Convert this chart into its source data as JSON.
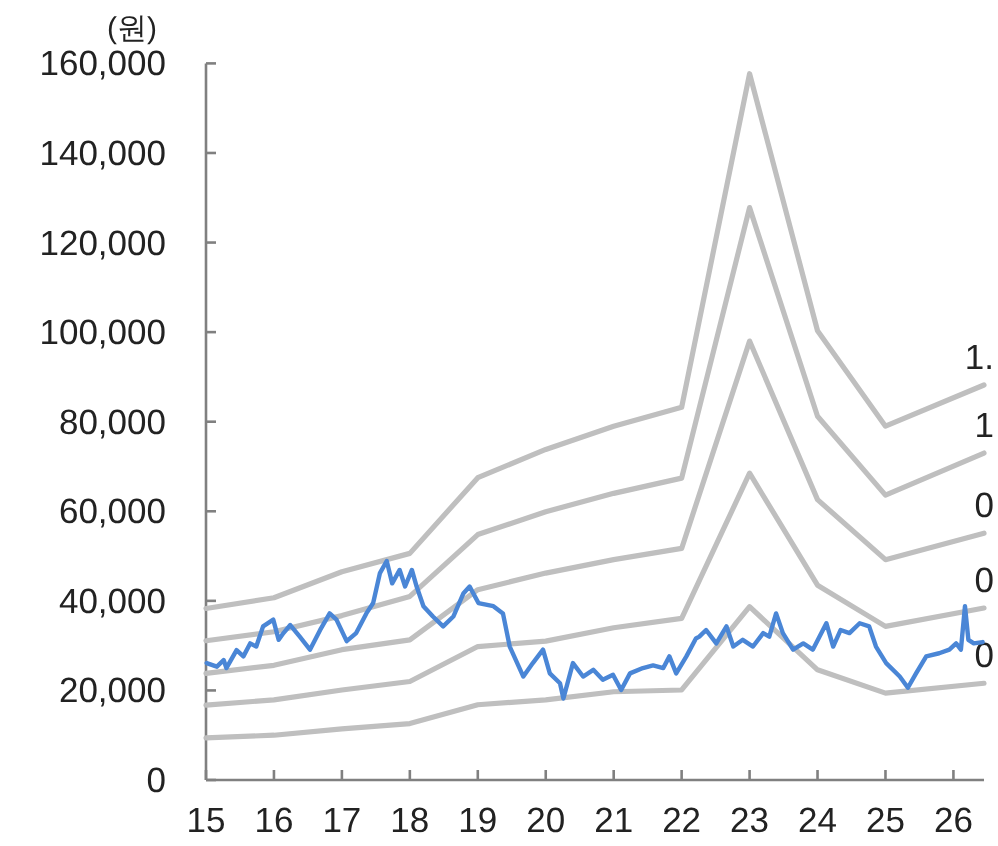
{
  "chart_data": {
    "type": "line",
    "ylabel": "(원)",
    "xlim": [
      15,
      26.45
    ],
    "ylim": [
      0,
      160000
    ],
    "xticks": [
      15,
      16,
      17,
      18,
      19,
      20,
      21,
      22,
      23,
      24,
      25,
      26
    ],
    "yticks": [
      0,
      {
        "value": 20000,
        "label": "20,000"
      },
      {
        "value": 40000,
        "label": "40,000"
      },
      {
        "value": 60000,
        "label": "60,000"
      },
      {
        "value": 80000,
        "label": "80,000"
      },
      {
        "value": 100000,
        "label": "100,000"
      },
      {
        "value": 120000,
        "label": "120,000"
      },
      {
        "value": 140000,
        "label": "140,000"
      },
      {
        "value": 160000,
        "label": "160,000"
      }
    ],
    "grid": false,
    "legend": false,
    "marker": "none",
    "line_style": "solid",
    "series": [
      {
        "color": "#bfbfbf",
        "name": "1.",
        "x": [
          15,
          16,
          17,
          18,
          19,
          20,
          21,
          22,
          23,
          24,
          25,
          26.45
        ],
        "values": [
          38300,
          40700,
          46500,
          50600,
          67500,
          73800,
          79000,
          83200,
          157700,
          100300,
          79000,
          88200
        ]
      },
      {
        "color": "#bfbfbf",
        "name": "1",
        "x": [
          15,
          16,
          17,
          18,
          19,
          20,
          21,
          22,
          23,
          24,
          25,
          26.45
        ],
        "values": [
          31100,
          33100,
          36700,
          41000,
          54800,
          59900,
          64000,
          67400,
          127800,
          81200,
          63600,
          73000
        ]
      },
      {
        "color": "#bfbfbf",
        "name": "0",
        "x": [
          15,
          16,
          17,
          18,
          19,
          20,
          21,
          22,
          23,
          24,
          25,
          26.45
        ],
        "values": [
          23800,
          25600,
          29100,
          31300,
          42500,
          46200,
          49200,
          51700,
          98000,
          62600,
          49200,
          55100
        ]
      },
      {
        "color": "#bfbfbf",
        "name": "0",
        "x": [
          15,
          16,
          17,
          18,
          19,
          20,
          21,
          22,
          23,
          24,
          25,
          26.45
        ],
        "values": [
          16700,
          17900,
          20100,
          22000,
          29800,
          31000,
          34000,
          36100,
          68500,
          43500,
          34300,
          38400
        ]
      },
      {
        "color": "#bfbfbf",
        "name": "0",
        "x": [
          15,
          16,
          17,
          18,
          19,
          20,
          21,
          22,
          23,
          24,
          25,
          26.45
        ],
        "values": [
          9400,
          10000,
          11400,
          12600,
          16800,
          17900,
          19700,
          20100,
          38700,
          24600,
          19400,
          21600
        ]
      },
      {
        "color": "#4a86d6",
        "x": [
          15.01,
          15.16,
          15.26,
          15.3,
          15.45,
          15.55,
          15.65,
          15.74,
          15.84,
          15.99,
          16.07,
          16.14,
          16.24,
          16.38,
          16.53,
          16.68,
          16.82,
          16.92,
          17.07,
          17.21,
          17.36,
          17.46,
          17.56,
          17.66,
          17.74,
          17.85,
          17.93,
          18.03,
          18.1,
          18.2,
          18.34,
          18.49,
          18.64,
          18.79,
          18.88,
          19.01,
          19.23,
          19.37,
          19.47,
          19.67,
          19.81,
          19.96,
          20.06,
          20.21,
          20.26,
          20.4,
          20.55,
          20.7,
          20.84,
          20.99,
          21.11,
          21.24,
          21.43,
          21.58,
          21.73,
          21.82,
          21.92,
          22.07,
          22.21,
          22.26,
          22.36,
          22.51,
          22.66,
          22.76,
          22.9,
          23.05,
          23.2,
          23.29,
          23.39,
          23.49,
          23.64,
          23.79,
          23.93,
          24.13,
          24.23,
          24.34,
          24.47,
          24.62,
          24.76,
          24.86,
          25.01,
          25.21,
          25.33,
          25.45,
          25.6,
          25.79,
          25.94,
          26.04,
          26.11,
          26.17,
          26.22,
          26.3,
          26.43
        ],
        "values": [
          26100,
          25300,
          26800,
          25000,
          29000,
          27600,
          30500,
          29800,
          34300,
          35800,
          31300,
          32800,
          34600,
          32000,
          29100,
          33500,
          37200,
          35800,
          31000,
          32800,
          37200,
          39500,
          46200,
          48900,
          43900,
          46900,
          43200,
          46900,
          43200,
          38800,
          36500,
          34300,
          36500,
          41700,
          43200,
          39500,
          38800,
          37200,
          29800,
          23100,
          26100,
          29100,
          23800,
          21600,
          18200,
          26100,
          23100,
          24600,
          22400,
          23500,
          20100,
          23800,
          25000,
          25600,
          25000,
          27600,
          23800,
          27600,
          31600,
          32000,
          33500,
          30500,
          34300,
          29800,
          31300,
          29800,
          32800,
          32000,
          37200,
          32800,
          29100,
          30500,
          29100,
          35000,
          29800,
          33500,
          32800,
          35000,
          34300,
          29800,
          26100,
          23100,
          20600,
          23800,
          27600,
          28300,
          29100,
          30500,
          29100,
          38800,
          31300,
          30500,
          30800
        ]
      }
    ]
  }
}
